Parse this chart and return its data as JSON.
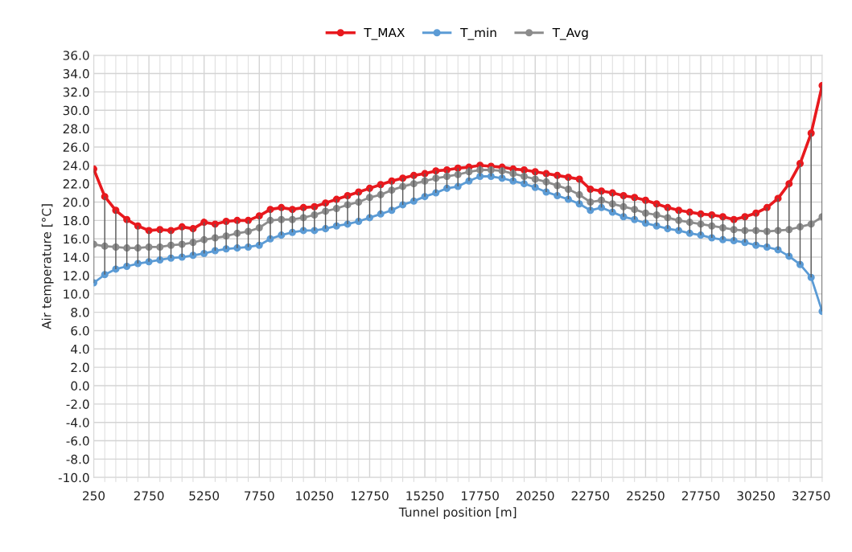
{
  "chart_data": {
    "type": "line",
    "xlabel": "Tunnel position [m]",
    "ylabel": "Air temperature [°C]",
    "x": [
      250,
      750,
      1250,
      1750,
      2250,
      2750,
      3250,
      3750,
      4250,
      4750,
      5250,
      5750,
      6250,
      6750,
      7250,
      7750,
      8250,
      8750,
      9250,
      9750,
      10250,
      10750,
      11250,
      11750,
      12250,
      12750,
      13250,
      13750,
      14250,
      14750,
      15250,
      15750,
      16250,
      16750,
      17250,
      17750,
      18250,
      18750,
      19250,
      19750,
      20250,
      20750,
      21250,
      21750,
      22250,
      22750,
      23250,
      23750,
      24250,
      24750,
      25250,
      25750,
      26250,
      26750,
      27250,
      27750,
      28250,
      28750,
      29250,
      29750,
      30250,
      30750,
      31250,
      31750,
      32250,
      32750,
      33250
    ],
    "series": [
      {
        "name": "T_MAX",
        "color": "#e8191e",
        "values": [
          23.6,
          20.6,
          19.1,
          18.1,
          17.4,
          16.9,
          17.0,
          16.9,
          17.3,
          17.1,
          17.8,
          17.6,
          17.9,
          18.0,
          18.0,
          18.5,
          19.2,
          19.4,
          19.2,
          19.4,
          19.5,
          19.9,
          20.3,
          20.7,
          21.1,
          21.5,
          21.9,
          22.3,
          22.6,
          22.9,
          23.1,
          23.4,
          23.5,
          23.7,
          23.8,
          24.0,
          23.9,
          23.8,
          23.6,
          23.5,
          23.3,
          23.1,
          22.9,
          22.7,
          22.5,
          21.4,
          21.2,
          21.0,
          20.7,
          20.5,
          20.2,
          19.8,
          19.4,
          19.1,
          18.9,
          18.7,
          18.6,
          18.4,
          18.1,
          18.4,
          18.8,
          19.4,
          20.4,
          22.0,
          24.2,
          27.5,
          32.7
        ]
      },
      {
        "name": "T_min",
        "color": "#5b9bd5",
        "values": [
          11.2,
          12.1,
          12.7,
          13.0,
          13.3,
          13.5,
          13.7,
          13.9,
          14.0,
          14.2,
          14.4,
          14.7,
          14.9,
          15.0,
          15.1,
          15.3,
          16.0,
          16.4,
          16.7,
          16.9,
          16.9,
          17.1,
          17.4,
          17.6,
          17.9,
          18.3,
          18.7,
          19.1,
          19.7,
          20.1,
          20.6,
          21.0,
          21.5,
          21.7,
          22.3,
          22.8,
          22.8,
          22.6,
          22.3,
          22.0,
          21.6,
          21.1,
          20.7,
          20.3,
          19.8,
          19.1,
          19.4,
          18.9,
          18.4,
          18.1,
          17.7,
          17.4,
          17.1,
          16.9,
          16.6,
          16.4,
          16.1,
          15.9,
          15.8,
          15.6,
          15.3,
          15.1,
          14.8,
          14.1,
          13.2,
          11.8,
          8.1
        ]
      },
      {
        "name": "T_Avg",
        "color": "#8c8c8c",
        "values": [
          15.4,
          15.2,
          15.1,
          15.0,
          15.0,
          15.1,
          15.1,
          15.3,
          15.4,
          15.6,
          15.9,
          16.1,
          16.3,
          16.6,
          16.8,
          17.2,
          18.0,
          18.1,
          18.1,
          18.3,
          18.6,
          19.0,
          19.3,
          19.7,
          20.0,
          20.5,
          20.8,
          21.3,
          21.7,
          22.0,
          22.3,
          22.6,
          22.8,
          23.0,
          23.3,
          23.5,
          23.5,
          23.4,
          23.1,
          22.8,
          22.5,
          22.2,
          21.8,
          21.4,
          20.8,
          20.0,
          20.2,
          19.8,
          19.5,
          19.2,
          18.8,
          18.6,
          18.3,
          18.0,
          17.8,
          17.6,
          17.4,
          17.2,
          17.0,
          16.9,
          16.9,
          16.8,
          16.9,
          17.0,
          17.3,
          17.6,
          18.4
        ],
        "errors": [
          [
            11.2,
            23.6
          ],
          [
            12.1,
            20.6
          ],
          [
            12.7,
            19.1
          ],
          [
            13.0,
            18.1
          ],
          [
            13.3,
            17.4
          ],
          [
            13.5,
            16.9
          ],
          [
            13.7,
            17.0
          ],
          [
            13.9,
            16.9
          ],
          [
            14.0,
            17.3
          ],
          [
            14.2,
            17.1
          ],
          [
            14.4,
            17.8
          ],
          [
            14.7,
            17.6
          ],
          [
            14.9,
            17.9
          ],
          [
            15.0,
            18.0
          ],
          [
            15.1,
            18.0
          ],
          [
            15.3,
            18.5
          ],
          [
            16.0,
            19.2
          ],
          [
            16.4,
            19.4
          ],
          [
            16.7,
            19.2
          ],
          [
            16.9,
            19.4
          ],
          [
            16.9,
            19.5
          ],
          [
            17.1,
            19.9
          ],
          [
            17.4,
            20.3
          ],
          [
            17.6,
            20.7
          ],
          [
            17.9,
            21.1
          ],
          [
            18.3,
            21.5
          ],
          [
            18.7,
            21.9
          ],
          [
            19.1,
            22.3
          ],
          [
            19.7,
            22.6
          ],
          [
            20.1,
            22.9
          ],
          [
            20.6,
            23.1
          ],
          [
            21.0,
            23.4
          ],
          [
            21.5,
            23.5
          ],
          [
            21.7,
            23.7
          ],
          [
            22.3,
            23.8
          ],
          [
            22.8,
            24.0
          ],
          [
            22.8,
            23.9
          ],
          [
            22.6,
            23.8
          ],
          [
            22.3,
            23.6
          ],
          [
            22.0,
            23.5
          ],
          [
            21.6,
            23.3
          ],
          [
            21.1,
            23.1
          ],
          [
            20.7,
            22.9
          ],
          [
            20.3,
            22.7
          ],
          [
            19.8,
            22.5
          ],
          [
            19.1,
            21.4
          ],
          [
            19.4,
            21.2
          ],
          [
            18.9,
            21.0
          ],
          [
            18.4,
            20.7
          ],
          [
            18.1,
            20.5
          ],
          [
            17.7,
            20.2
          ],
          [
            17.4,
            19.8
          ],
          [
            17.1,
            19.4
          ],
          [
            16.9,
            19.1
          ],
          [
            16.6,
            18.9
          ],
          [
            16.4,
            18.7
          ],
          [
            16.1,
            18.6
          ],
          [
            15.9,
            18.4
          ],
          [
            15.8,
            18.1
          ],
          [
            15.6,
            18.4
          ],
          [
            15.3,
            18.8
          ],
          [
            15.1,
            19.4
          ],
          [
            14.8,
            20.4
          ],
          [
            14.1,
            22.0
          ],
          [
            13.2,
            24.2
          ],
          [
            11.8,
            27.5
          ],
          [
            8.1,
            32.7
          ]
        ]
      }
    ],
    "xlim": [
      250,
      33250
    ],
    "xticks": [
      250,
      2750,
      5250,
      7750,
      10250,
      12750,
      15250,
      17750,
      20250,
      22750,
      25250,
      27750,
      30250,
      32750
    ],
    "ylim": [
      -10,
      36
    ],
    "yticks": [
      {
        "value": -10,
        "label": "-10.0"
      },
      {
        "value": -8,
        "label": "-8.0"
      },
      {
        "value": -6,
        "label": "-6.0"
      },
      {
        "value": -4,
        "label": "-4.0"
      },
      {
        "value": -2,
        "label": "-2.0"
      },
      {
        "value": 0,
        "label": "0.0"
      },
      {
        "value": 2,
        "label": "2.0"
      },
      {
        "value": 4,
        "label": "4.0"
      },
      {
        "value": 6,
        "label": "6.0"
      },
      {
        "value": 8,
        "label": "8.0"
      },
      {
        "value": 10,
        "label": "10.0"
      },
      {
        "value": 12,
        "label": "12.0"
      },
      {
        "value": 14,
        "label": "14.0"
      },
      {
        "value": 16,
        "label": "16.0"
      },
      {
        "value": 18,
        "label": "18.0"
      },
      {
        "value": 20,
        "label": "20.0"
      },
      {
        "value": 22,
        "label": "22.0"
      },
      {
        "value": 24,
        "label": "24.0"
      },
      {
        "value": 26,
        "label": "26.0"
      },
      {
        "value": 28,
        "label": "28.0"
      },
      {
        "value": 30,
        "label": "30.0"
      },
      {
        "value": 32,
        "label": "32.0"
      },
      {
        "value": 34,
        "label": "34.0"
      },
      {
        "value": 36,
        "label": "36.0"
      }
    ],
    "grid": true,
    "legend": "top",
    "marker": "circle",
    "line_style": "solid"
  }
}
